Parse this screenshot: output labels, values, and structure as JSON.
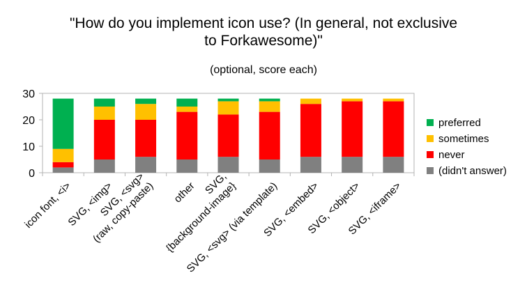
{
  "chart_data": {
    "type": "bar",
    "stacked": true,
    "title_lines": [
      "\"How do you implement icon use? (In general, not exclusive",
      "to Forkawesome)\""
    ],
    "subtitle": "(optional, score each)",
    "categories": [
      [
        "icon font, <i>"
      ],
      [
        "SVG, <img>"
      ],
      [
        "SVG, <svg>",
        "(raw, copy-paste)"
      ],
      [
        "other"
      ],
      [
        "SVG,",
        "{background-image}"
      ],
      [
        "SVG, <svg> (via template)"
      ],
      [
        "SVG, <embed>"
      ],
      [
        "SVG, <object>"
      ],
      [
        "SVG, <iframe>"
      ]
    ],
    "series": [
      {
        "name": "(didn't answer)",
        "color": "#808080",
        "values": [
          2,
          5,
          6,
          5,
          6,
          5,
          6,
          6,
          6
        ]
      },
      {
        "name": "never",
        "color": "#ff0000",
        "values": [
          2,
          15,
          14,
          18,
          16,
          18,
          20,
          21,
          21
        ]
      },
      {
        "name": "sometimes",
        "color": "#ffc000",
        "values": [
          5,
          5,
          6,
          2,
          5,
          4,
          2,
          1,
          1
        ]
      },
      {
        "name": "preferred",
        "color": "#00b050",
        "values": [
          19,
          3,
          2,
          3,
          1,
          1,
          0,
          0,
          0
        ]
      }
    ],
    "legend_order": [
      "preferred",
      "sometimes",
      "never",
      "(didn't answer)"
    ],
    "legend_position": "right",
    "ylim": [
      0,
      30
    ],
    "yticks": [
      "0",
      "10",
      "20",
      "30"
    ],
    "grid": false
  }
}
